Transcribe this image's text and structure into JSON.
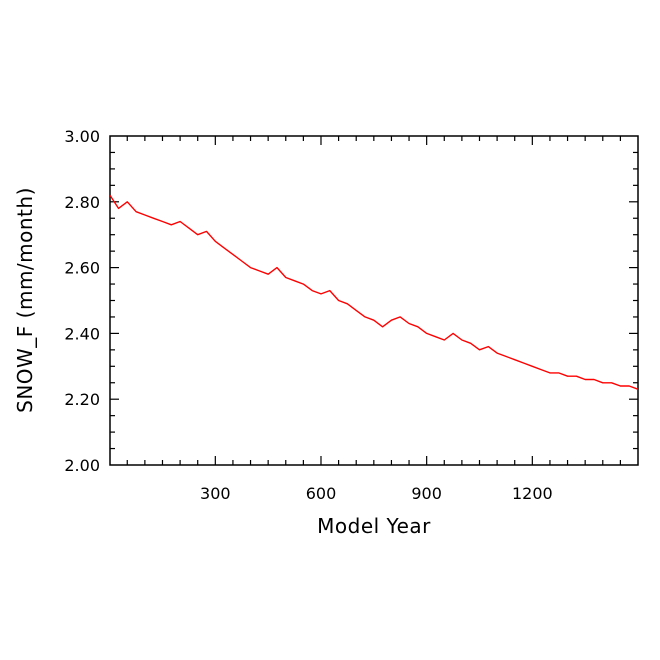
{
  "chart_data": {
    "type": "line",
    "title": "",
    "xlabel": "Model Year",
    "ylabel": "SNOW_F (mm/month)",
    "xlim": [
      1,
      1500
    ],
    "ylim": [
      2.0,
      3.0
    ],
    "x_ticks": [
      300,
      600,
      900,
      1200
    ],
    "y_ticks": [
      2.0,
      2.2,
      2.4,
      2.6,
      2.8,
      3.0
    ],
    "x_tick_labels": [
      "300",
      "600",
      "900",
      "1200"
    ],
    "y_tick_labels": [
      "2.00",
      "2.20",
      "2.40",
      "2.60",
      "2.80",
      "3.00"
    ],
    "grid": false,
    "series": [
      {
        "name": "",
        "color": "#ff0000",
        "x": [
          1,
          25,
          50,
          75,
          100,
          125,
          150,
          175,
          200,
          225,
          250,
          275,
          300,
          325,
          350,
          375,
          400,
          425,
          450,
          475,
          500,
          525,
          550,
          575,
          600,
          625,
          650,
          675,
          700,
          725,
          750,
          775,
          800,
          825,
          850,
          875,
          900,
          925,
          950,
          975,
          1000,
          1025,
          1050,
          1075,
          1100,
          1125,
          1150,
          1175,
          1200,
          1225,
          1250,
          1275,
          1300,
          1325,
          1350,
          1375,
          1400,
          1425,
          1450,
          1475,
          1500
        ],
        "values": [
          2.82,
          2.78,
          2.8,
          2.77,
          2.76,
          2.75,
          2.74,
          2.73,
          2.74,
          2.72,
          2.7,
          2.71,
          2.68,
          2.66,
          2.64,
          2.62,
          2.6,
          2.59,
          2.58,
          2.6,
          2.57,
          2.56,
          2.55,
          2.53,
          2.52,
          2.53,
          2.5,
          2.49,
          2.47,
          2.45,
          2.44,
          2.42,
          2.44,
          2.45,
          2.43,
          2.42,
          2.4,
          2.39,
          2.38,
          2.4,
          2.38,
          2.37,
          2.35,
          2.36,
          2.34,
          2.33,
          2.32,
          2.31,
          2.3,
          2.29,
          2.28,
          2.28,
          2.27,
          2.27,
          2.26,
          2.26,
          2.25,
          2.25,
          2.24,
          2.24,
          2.23
        ]
      }
    ]
  }
}
